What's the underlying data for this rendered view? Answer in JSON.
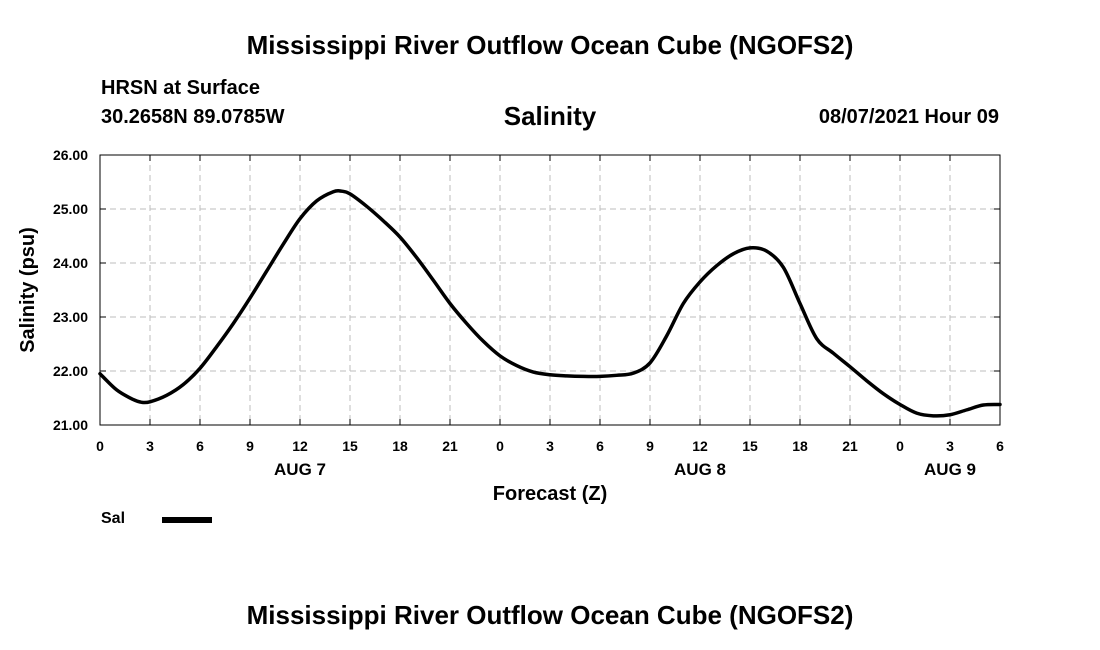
{
  "header": {
    "title": "Mississippi River Outflow Ocean Cube (NGOFS2)",
    "station": "HRSN at Surface",
    "coordinates": "30.2658N  89.0785W",
    "run_time": "08/07/2021 Hour 09"
  },
  "footer": {
    "title": "Mississippi River Outflow Ocean Cube (NGOFS2)"
  },
  "legend": {
    "label": "Sal"
  },
  "chart_data": {
    "type": "line",
    "title": "Salinity",
    "xlabel": "Forecast (Z)",
    "ylabel": "Salinity (psu)",
    "xlim": [
      0,
      54
    ],
    "ylim": [
      21.0,
      26.0
    ],
    "grid": true,
    "x_ticks": [
      0,
      3,
      6,
      9,
      12,
      15,
      18,
      21,
      24,
      27,
      30,
      33,
      36,
      39,
      42,
      45,
      48,
      51,
      54
    ],
    "x_tick_labels": [
      "0",
      "3",
      "6",
      "9",
      "12",
      "15",
      "18",
      "21",
      "0",
      "3",
      "6",
      "9",
      "12",
      "15",
      "18",
      "21",
      "0",
      "3",
      "6"
    ],
    "y_ticks": [
      21.0,
      22.0,
      23.0,
      24.0,
      25.0,
      26.0
    ],
    "y_tick_labels": [
      "21.00",
      "22.00",
      "23.00",
      "24.00",
      "25.00",
      "26.00"
    ],
    "date_labels": [
      {
        "label": "AUG 7",
        "x": 12
      },
      {
        "label": "AUG 8",
        "x": 36
      },
      {
        "label": "AUG 9",
        "x": 51
      }
    ],
    "series": [
      {
        "name": "Sal",
        "color": "#000000",
        "x": [
          0,
          1,
          2,
          2.5,
          3,
          4,
          5,
          6,
          7,
          8,
          9,
          10,
          11,
          12,
          13,
          14,
          14.5,
          15,
          16,
          17,
          18,
          19,
          20,
          21,
          22,
          23,
          24,
          25,
          26,
          27,
          28,
          29,
          30,
          31,
          32,
          33,
          34,
          35,
          36,
          37,
          38,
          39,
          40,
          41,
          42,
          43,
          44,
          45,
          46,
          47,
          48,
          49,
          50,
          51,
          52,
          53,
          54
        ],
        "values": [
          21.95,
          21.65,
          21.47,
          21.42,
          21.43,
          21.55,
          21.75,
          22.05,
          22.45,
          22.88,
          23.35,
          23.85,
          24.35,
          24.82,
          25.15,
          25.32,
          25.33,
          25.28,
          25.05,
          24.78,
          24.48,
          24.1,
          23.68,
          23.25,
          22.88,
          22.55,
          22.28,
          22.1,
          21.98,
          21.93,
          21.91,
          21.9,
          21.9,
          21.92,
          21.96,
          22.15,
          22.65,
          23.25,
          23.65,
          23.95,
          24.17,
          24.28,
          24.22,
          23.92,
          23.25,
          22.6,
          22.33,
          22.08,
          21.82,
          21.58,
          21.38,
          21.22,
          21.17,
          21.19,
          21.28,
          21.37,
          21.38
        ]
      }
    ]
  }
}
